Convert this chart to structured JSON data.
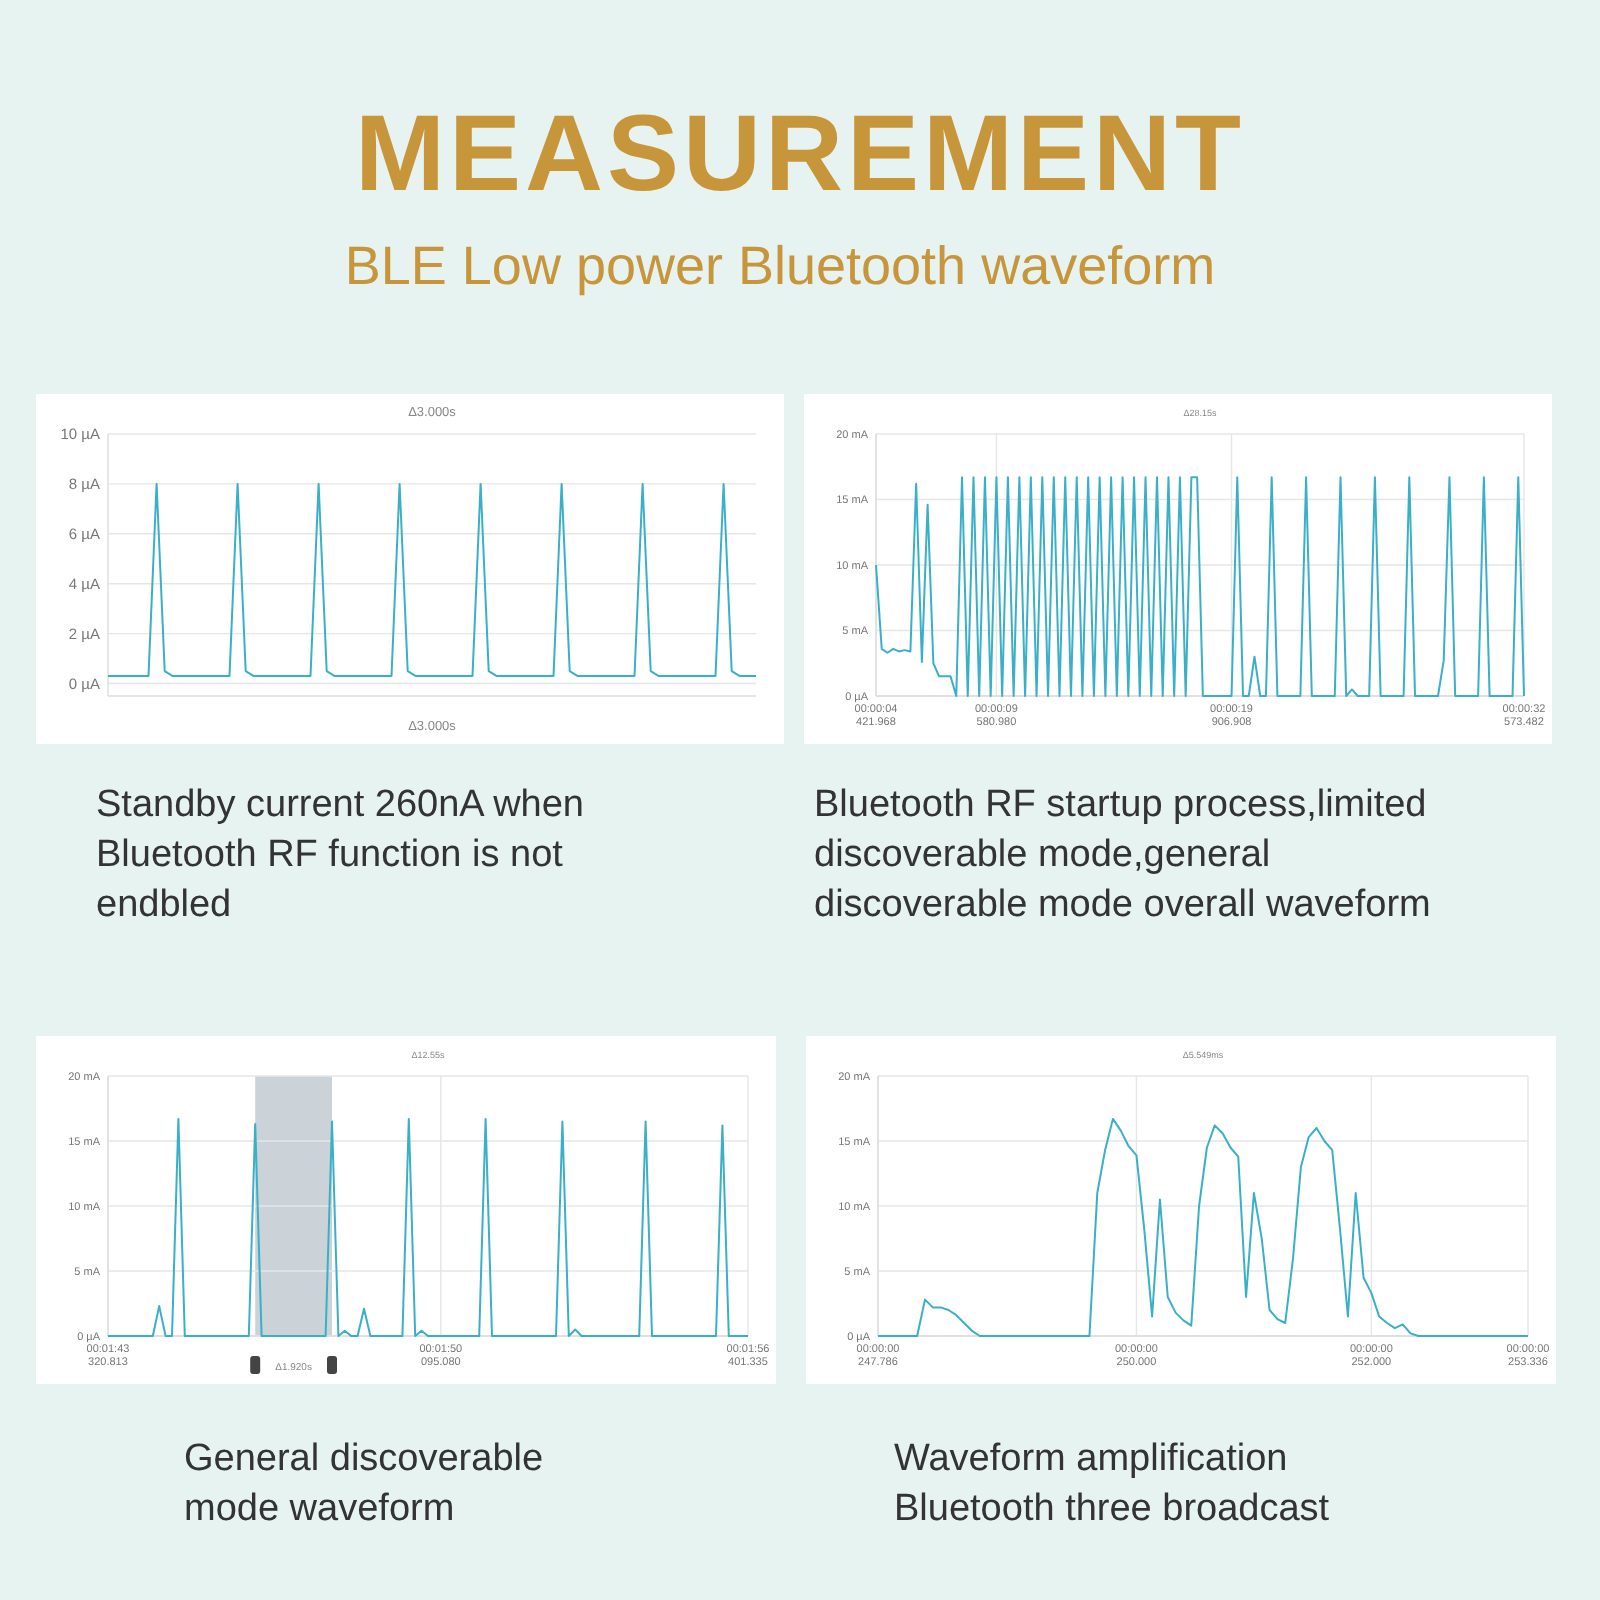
{
  "chart_data": [
    {
      "type": "other",
      "title": "MEASUREMENT",
      "subtitle": "BLE Low power Bluetooth waveform"
    },
    {
      "type": "line",
      "title": "Standby current 260nA when Bluetooth RF function is not endbled",
      "color": "#3ab0c8",
      "grid": "y",
      "ylim": [
        -0.5,
        10
      ],
      "yticks": [
        {
          "value": 0,
          "label": "0 µA"
        },
        {
          "value": 2,
          "label": "2 µA"
        },
        {
          "value": 4,
          "label": "4 µA"
        },
        {
          "value": 6,
          "label": "6 µA"
        },
        {
          "value": 8,
          "label": "8 µA"
        },
        {
          "value": 10,
          "label": "10 µA"
        }
      ],
      "annotations": [
        "Δ3.000s",
        "Δ3.000s"
      ],
      "categories": [
        null,
        null,
        null,
        null,
        null,
        null,
        null,
        null,
        null,
        null,
        null,
        null,
        null,
        null,
        null,
        null,
        null,
        null,
        null,
        null,
        null,
        null,
        null,
        null,
        null,
        null,
        null,
        null,
        null,
        null,
        null,
        null,
        null,
        null,
        null,
        null,
        null,
        null,
        null,
        null,
        null,
        null,
        null,
        null,
        null,
        null,
        null,
        null,
        null,
        null,
        null,
        null,
        null,
        null,
        null,
        null,
        null,
        null,
        null,
        null,
        null,
        null,
        null,
        null,
        null,
        null,
        null,
        null,
        null,
        null,
        null,
        null,
        null,
        null,
        null,
        null,
        null,
        null,
        null,
        null,
        null
      ],
      "values": [
        0.3,
        0.3,
        0.3,
        0.3,
        0.3,
        0.3,
        8,
        0.5,
        0.3,
        0.3,
        0.3,
        0.3,
        0.3,
        0.3,
        0.3,
        0.3,
        8,
        0.5,
        0.3,
        0.3,
        0.3,
        0.3,
        0.3,
        0.3,
        0.3,
        0.3,
        8,
        0.5,
        0.3,
        0.3,
        0.3,
        0.3,
        0.3,
        0.3,
        0.3,
        0.3,
        8,
        0.5,
        0.3,
        0.3,
        0.3,
        0.3,
        0.3,
        0.3,
        0.3,
        0.3,
        8,
        0.5,
        0.3,
        0.3,
        0.3,
        0.3,
        0.3,
        0.3,
        0.3,
        0.3,
        8,
        0.5,
        0.3,
        0.3,
        0.3,
        0.3,
        0.3,
        0.3,
        0.3,
        0.3,
        8,
        0.5,
        0.3,
        0.3,
        0.3,
        0.3,
        0.3,
        0.3,
        0.3,
        0.3,
        8,
        0.5,
        0.3,
        0.3,
        0.3
      ]
    },
    {
      "type": "line",
      "title": "Bluetooth RF startup process,limited discoverable mode,general discoverable mode overall waveform",
      "color": "#3ab0c8",
      "grid": true,
      "ylim": [
        0,
        20
      ],
      "yticks": [
        {
          "value": 0,
          "label": "0 µA"
        },
        {
          "value": 5,
          "label": "5 mA"
        },
        {
          "value": 10,
          "label": "10 mA"
        },
        {
          "value": 15,
          "label": "15 mA"
        },
        {
          "value": 20,
          "label": "20 mA"
        }
      ],
      "annotations": [
        "Δ28.15s"
      ],
      "categories": [
        "00:00:04\n421.968",
        null,
        null,
        null,
        null,
        null,
        null,
        null,
        null,
        null,
        null,
        null,
        null,
        null,
        null,
        null,
        null,
        null,
        null,
        null,
        null,
        "00:00:09\n580.980",
        null,
        null,
        null,
        null,
        null,
        null,
        null,
        null,
        null,
        null,
        null,
        null,
        null,
        null,
        null,
        null,
        null,
        null,
        null,
        null,
        null,
        null,
        null,
        null,
        null,
        null,
        null,
        null,
        null,
        null,
        null,
        null,
        null,
        null,
        null,
        null,
        null,
        null,
        null,
        null,
        "00:00:19\n906.908",
        null,
        null,
        null,
        null,
        null,
        null,
        null,
        null,
        null,
        null,
        null,
        null,
        null,
        null,
        null,
        null,
        null,
        null,
        null,
        null,
        null,
        null,
        null,
        null,
        null,
        null,
        null,
        null,
        null,
        null,
        null,
        null,
        null,
        null,
        null,
        null,
        null,
        null,
        null,
        null,
        null,
        null,
        null,
        null,
        null,
        null,
        null,
        null,
        null,
        null,
        "00:00:32\n573.482"
      ],
      "values": [
        10,
        3.6,
        3.3,
        3.6,
        3.4,
        3.5,
        3.4,
        16.2,
        2.6,
        14.6,
        2.5,
        1.5,
        1.5,
        1.5,
        0,
        16.7,
        0,
        16.7,
        0,
        16.7,
        0,
        16.7,
        0,
        16.7,
        0,
        16.7,
        0,
        16.7,
        0,
        16.7,
        0,
        16.7,
        0,
        16.7,
        0,
        16.7,
        0,
        16.7,
        0,
        16.7,
        0,
        16.7,
        0,
        16.7,
        0,
        16.7,
        0,
        16.7,
        0,
        16.7,
        0,
        16.7,
        0,
        16.7,
        0,
        16.7,
        16.7,
        0,
        0,
        0,
        0,
        0,
        0,
        16.7,
        0,
        0,
        3,
        0,
        0,
        16.7,
        0,
        0,
        0,
        0,
        0,
        16.7,
        0,
        0,
        0,
        0,
        0,
        16.7,
        0,
        0.5,
        0,
        0,
        0,
        16.7,
        0,
        0,
        0,
        0,
        0,
        16.7,
        0,
        0,
        0,
        0,
        0,
        2.7,
        16.7,
        0,
        0,
        0,
        0,
        0,
        16.7,
        0,
        0,
        0,
        0,
        0,
        16.7,
        0
      ]
    },
    {
      "type": "line",
      "title": "General discoverable mode waveform",
      "color": "#3ab0c8",
      "grid": true,
      "ylim": [
        0,
        20
      ],
      "yticks": [
        {
          "value": 0,
          "label": "0 µA"
        },
        {
          "value": 5,
          "label": "5 mA"
        },
        {
          "value": 10,
          "label": "10 mA"
        },
        {
          "value": 15,
          "label": "15 mA"
        },
        {
          "value": 20,
          "label": "20 mA"
        }
      ],
      "annotations": [
        "Δ12.55s",
        "Δ1.920s"
      ],
      "categories": [
        "00:01:43\n320.813",
        null,
        null,
        null,
        null,
        null,
        null,
        null,
        null,
        null,
        null,
        null,
        null,
        null,
        null,
        null,
        null,
        null,
        null,
        null,
        null,
        null,
        null,
        null,
        null,
        null,
        null,
        null,
        null,
        null,
        null,
        null,
        null,
        null,
        null,
        null,
        null,
        null,
        null,
        null,
        null,
        null,
        null,
        null,
        null,
        null,
        null,
        null,
        null,
        null,
        null,
        null,
        "00:01:50\n095.080",
        null,
        null,
        null,
        null,
        null,
        null,
        null,
        null,
        null,
        null,
        null,
        null,
        null,
        null,
        null,
        null,
        null,
        null,
        null,
        null,
        null,
        null,
        null,
        null,
        null,
        null,
        null,
        null,
        null,
        null,
        null,
        null,
        null,
        null,
        null,
        null,
        null,
        null,
        null,
        null,
        null,
        null,
        null,
        null,
        null,
        null,
        null,
        "00:01:56\n401.335"
      ],
      "values": [
        0,
        0,
        0,
        0,
        0,
        0,
        0,
        0,
        2.3,
        0,
        0,
        16.7,
        0,
        0,
        0,
        0,
        0,
        0,
        0,
        0,
        0,
        0,
        0,
        16.3,
        0,
        0,
        0,
        0,
        0,
        0,
        0,
        0,
        0,
        0,
        0,
        16.5,
        0,
        0.4,
        0,
        0,
        2.1,
        0,
        0,
        0,
        0,
        0,
        0,
        16.7,
        0,
        0.4,
        0,
        0,
        0,
        0,
        0,
        0,
        0,
        0,
        0,
        16.7,
        0,
        0,
        0,
        0,
        0,
        0,
        0,
        0,
        0,
        0,
        0,
        16.5,
        0,
        0.5,
        0,
        0,
        0,
        0,
        0,
        0,
        0,
        0,
        0,
        0,
        16.5,
        0,
        0,
        0,
        0,
        0,
        0,
        0,
        0,
        0,
        0,
        0,
        16.2,
        0,
        0,
        0,
        0
      ]
    },
    {
      "type": "line",
      "title": "Waveform amplification Bluetooth three broadcast",
      "color": "#3ab0c8",
      "grid": true,
      "ylim": [
        0,
        20
      ],
      "yticks": [
        {
          "value": 0,
          "label": "0 µA"
        },
        {
          "value": 5,
          "label": "5 mA"
        },
        {
          "value": 10,
          "label": "10 mA"
        },
        {
          "value": 15,
          "label": "15 mA"
        },
        {
          "value": 20,
          "label": "20 mA"
        }
      ],
      "annotations": [
        "Δ5.549ms"
      ],
      "categories": [
        "00:00:00\n247.786",
        null,
        null,
        null,
        null,
        null,
        null,
        null,
        null,
        null,
        null,
        null,
        null,
        null,
        null,
        null,
        null,
        null,
        null,
        null,
        null,
        null,
        null,
        null,
        null,
        null,
        null,
        null,
        null,
        null,
        null,
        null,
        null,
        "00:00:00\n250.000",
        null,
        null,
        null,
        null,
        null,
        null,
        null,
        null,
        null,
        null,
        null,
        null,
        null,
        null,
        null,
        null,
        null,
        null,
        null,
        null,
        null,
        null,
        null,
        null,
        null,
        null,
        null,
        null,
        null,
        "00:00:00\n252.000",
        null,
        null,
        null,
        null,
        null,
        null,
        null,
        null,
        null,
        null,
        null,
        null,
        null,
        null,
        null,
        null,
        null,
        null,
        null,
        "00:00:00\n253.336"
      ],
      "values": [
        0,
        0,
        0,
        0,
        0,
        0,
        2.8,
        2.2,
        2.2,
        2,
        1.6,
        1,
        0.4,
        0,
        0,
        0,
        0,
        0,
        0,
        0,
        0,
        0,
        0,
        0,
        0,
        0,
        0,
        0,
        11,
        14.3,
        16.7,
        15.8,
        14.6,
        13.9,
        8.2,
        1.5,
        10.5,
        3,
        1.8,
        1.2,
        0.8,
        10,
        14.5,
        16.2,
        15.6,
        14.5,
        13.8,
        3,
        11,
        7.5,
        2,
        1.3,
        1,
        6,
        13,
        15.3,
        16,
        15,
        14.3,
        8.2,
        1.5,
        11,
        4.5,
        3.3,
        1.5,
        1,
        0.6,
        0.9,
        0.2,
        0,
        0,
        0,
        0,
        0,
        0,
        0,
        0,
        0,
        0,
        0,
        0,
        0,
        0,
        0
      ]
    }
  ]
}
